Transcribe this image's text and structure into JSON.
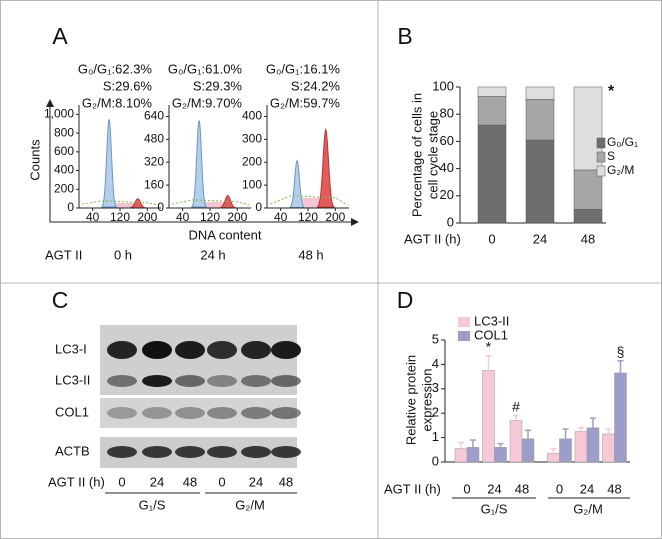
{
  "panels": [
    "A",
    "B",
    "C",
    "D"
  ],
  "flow": {
    "ylabel": "Counts",
    "xlabel": "DNA content",
    "condition": "AGT II",
    "xlim": [
      0,
      240
    ],
    "xticks": [
      40,
      120,
      200
    ],
    "histograms": [
      {
        "stats": [
          "G₀/G₁:62.3%",
          "S:29.6%",
          "G₂/M:8.10%"
        ],
        "ylim": [
          0,
          1100
        ],
        "yticks": [
          0,
          200,
          400,
          600,
          800,
          {
            "value": 1000,
            "label": "1,000"
          }
        ],
        "time": "0 h"
      },
      {
        "stats": [
          "G₀/G₁:61.0%",
          "S:29.3%",
          "G₂/M:9.70%"
        ],
        "ylim": [
          0,
          720
        ],
        "yticks": [
          0,
          160,
          320,
          480,
          640
        ],
        "time": "24 h"
      },
      {
        "stats": [
          "G₀/G₁:16.1%",
          "S:24.2%",
          "G₂/M:59.7%"
        ],
        "ylim": [
          0,
          450
        ],
        "yticks": [
          0,
          100,
          200,
          300,
          400
        ],
        "time": "48 h"
      }
    ]
  },
  "blot": {
    "rows": [
      "LC3-I",
      "LC3-II",
      "COL1",
      "ACTB"
    ],
    "condition": "AGT II (h)",
    "lanes": [
      "0",
      "24",
      "48",
      "0",
      "24",
      "48"
    ],
    "groups": [
      "G₁/S",
      "G₂/M"
    ]
  },
  "chart_data": [
    {
      "type": "stacked_bar",
      "ylabel": [
        "Percentage of cells in",
        "cell cycle stage"
      ],
      "xlabel": "AGT II (h)",
      "categories": [
        "0",
        "24",
        "48"
      ],
      "ylim": [
        0,
        100
      ],
      "yticks": [
        0,
        20,
        40,
        60,
        80,
        100
      ],
      "series": [
        {
          "name": "G₀/G₁",
          "color": "#6e6e6e",
          "values": [
            72,
            61,
            10
          ]
        },
        {
          "name": "S",
          "color": "#a6a6a6",
          "values": [
            21,
            30,
            29
          ]
        },
        {
          "name": "G₂/M",
          "color": "#dedede",
          "values": [
            7,
            9,
            61
          ]
        }
      ],
      "annotations": [
        null,
        null,
        "*"
      ],
      "legend": "right"
    },
    {
      "type": "bar",
      "ylabel": [
        "Relative protein",
        "expression"
      ],
      "xlabel": "AGT II (h)",
      "categories": [
        "0",
        "24",
        "48",
        "0",
        "24",
        "48"
      ],
      "groups": [
        "G₁/S",
        "G₂/M"
      ],
      "ylim": [
        0,
        5
      ],
      "yticks": [
        0,
        1,
        2,
        3,
        4,
        5
      ],
      "series": [
        {
          "name": "LC3-II",
          "color": "#f7c9d8",
          "values": [
            0.55,
            3.75,
            1.7,
            0.35,
            1.25,
            1.15
          ],
          "errors": [
            0.25,
            0.6,
            0.2,
            0.2,
            0.15,
            0.2
          ],
          "annotations": [
            null,
            "*",
            "#",
            null,
            null,
            null
          ]
        },
        {
          "name": "COL1",
          "color": "#9d9dc9",
          "values": [
            0.6,
            0.6,
            0.95,
            0.95,
            1.4,
            3.65
          ],
          "errors": [
            0.3,
            0.15,
            0.35,
            0.4,
            0.4,
            0.5
          ],
          "annotations": [
            null,
            null,
            null,
            null,
            null,
            "§"
          ]
        }
      ],
      "legend": "top-left"
    }
  ]
}
